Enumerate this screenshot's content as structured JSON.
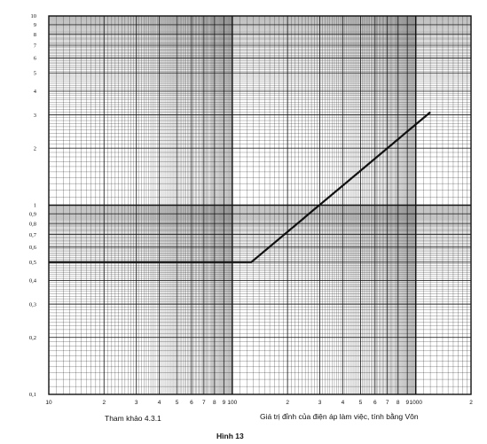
{
  "chart_data": {
    "type": "line",
    "x_scale": "log",
    "y_scale": "log",
    "xlim": [
      10,
      2000
    ],
    "ylim": [
      0.1,
      10
    ],
    "grid": true,
    "x_tick_labels": [
      "10",
      "2",
      "3",
      "4",
      "5",
      "6",
      "7",
      "8",
      "9",
      "100",
      "2",
      "3",
      "4",
      "5",
      "6",
      "7",
      "8",
      "9",
      "1000",
      "2"
    ],
    "y_tick_labels": [
      "0,1",
      "0,2",
      "0,3",
      "0,4",
      "0,5",
      "0,6",
      "0,7",
      "0,8",
      "0,9",
      "1",
      "2",
      "3",
      "4",
      "5",
      "6",
      "7",
      "8",
      "9",
      "10"
    ],
    "series": [
      {
        "x": [
          10,
          127,
          1200
        ],
        "y": [
          0.5,
          0.5,
          3.1
        ]
      }
    ]
  },
  "captions": {
    "reference": "Tham khảo 4.3.1",
    "xlabel": "Giá  trị đỉnh của điện áp làm việc, tính bằng Vôn",
    "figure": "Hình 13"
  },
  "colors": {
    "ink": "#111111",
    "paper": "#ffffff"
  }
}
